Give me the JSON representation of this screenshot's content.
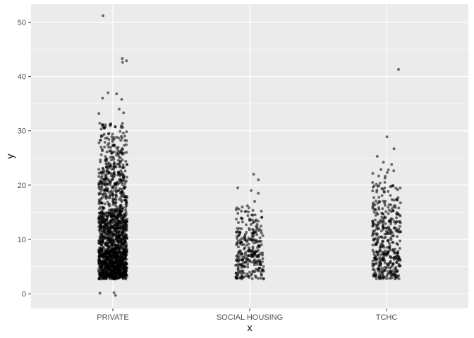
{
  "chart_data": {
    "type": "scatter",
    "subtype": "jitter-strip",
    "xlabel": "x",
    "ylabel": "y",
    "categories": [
      "PRIVATE",
      "SOCIAL HOUSING",
      "TCHC"
    ],
    "ylim": [
      -2.7,
      53.3
    ],
    "y_ticks": [
      0,
      10,
      20,
      30,
      40,
      50
    ],
    "grid": true,
    "colors": {
      "panel": "#ebebeb",
      "grid": "#ffffff",
      "point": "#000000",
      "tick_text": "#4d4d4d"
    },
    "point_alpha": 0.55,
    "series": [
      {
        "category": "PRIVATE",
        "approx_n": 1700,
        "max": 51.2,
        "min": -0.3,
        "outliers": [
          51.2,
          43.3,
          42.9,
          42.6,
          37.0,
          36.8,
          36.0,
          35.8,
          34.0,
          33.3,
          33.2,
          0.2,
          0.1,
          -0.3
        ]
      },
      {
        "category": "SOCIAL HOUSING",
        "approx_n": 300,
        "max": 22.0,
        "min": 2.6,
        "outliers": [
          22.0,
          21.0,
          19.5,
          19.0,
          18.5,
          17.0,
          16.2
        ]
      },
      {
        "category": "TCHC",
        "approx_n": 420,
        "max": 41.3,
        "min": 2.6,
        "outliers": [
          41.3,
          28.9,
          26.7,
          25.3,
          24.2,
          23.8
        ]
      }
    ]
  }
}
